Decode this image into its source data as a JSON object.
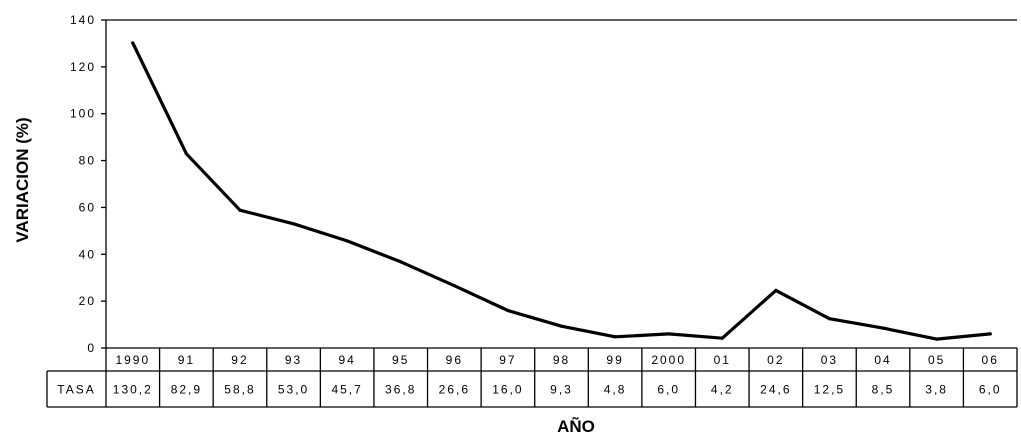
{
  "chart_data": {
    "type": "line",
    "xlabel": "AÑO",
    "ylabel": "VARIACION (%)",
    "ylim": [
      0,
      140
    ],
    "yticks": [
      "0",
      "20",
      "40",
      "60",
      "80",
      "100",
      "120",
      "140"
    ],
    "grid": false,
    "categories": [
      "1990",
      "91",
      "92",
      "93",
      "94",
      "95",
      "96",
      "97",
      "98",
      "99",
      "2000",
      "01",
      "02",
      "03",
      "04",
      "05",
      "06"
    ],
    "series": [
      {
        "values": [
          130.2,
          82.9,
          58.8,
          53.0,
          45.7,
          36.8,
          26.6,
          16.0,
          9.3,
          4.8,
          6.0,
          4.2,
          24.6,
          12.5,
          8.5,
          3.8,
          6.0
        ]
      }
    ],
    "table": {
      "row_label": "TASA",
      "cells": [
        "130,2",
        "82,9",
        "58,8",
        "53,0",
        "45,7",
        "36,8",
        "26,6",
        "16,0",
        "9,3",
        "4,8",
        "6,0",
        "4,2",
        "24,6",
        "12,5",
        "8,5",
        "3,8",
        "6,0"
      ]
    },
    "line_color": "#000000"
  }
}
